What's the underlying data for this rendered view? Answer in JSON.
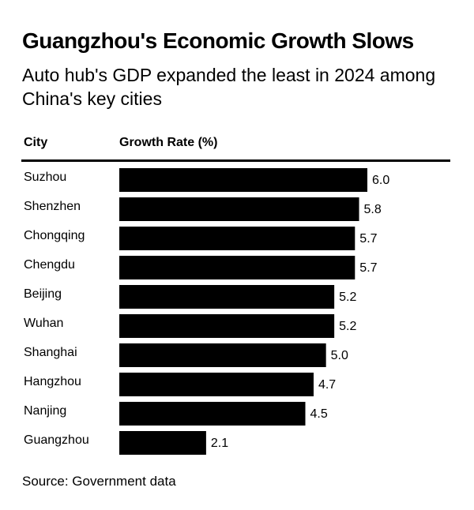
{
  "title": "Guangzhou's Economic Growth Slows",
  "subtitle": "Auto hub's GDP expanded the least in 2024 among China's key cities",
  "source": "Source: Government data",
  "chart_data": {
    "type": "bar",
    "orientation": "horizontal",
    "column_headers": [
      "City",
      "Growth Rate (%)"
    ],
    "categories": [
      "Suzhou",
      "Shenzhen",
      "Chongqing",
      "Chengdu",
      "Beijing",
      "Wuhan",
      "Shanghai",
      "Hangzhou",
      "Nanjing",
      "Guangzhou"
    ],
    "values": [
      6.0,
      5.8,
      5.7,
      5.7,
      5.2,
      5.2,
      5.0,
      4.7,
      4.5,
      2.1
    ],
    "data_labels": [
      "6.0",
      "5.8",
      "5.7",
      "5.7",
      "5.2",
      "5.2",
      "5.0",
      "4.7",
      "4.5",
      "2.1"
    ],
    "xlim": [
      0,
      6.0
    ],
    "grid": false,
    "bar_color": "#000000"
  }
}
